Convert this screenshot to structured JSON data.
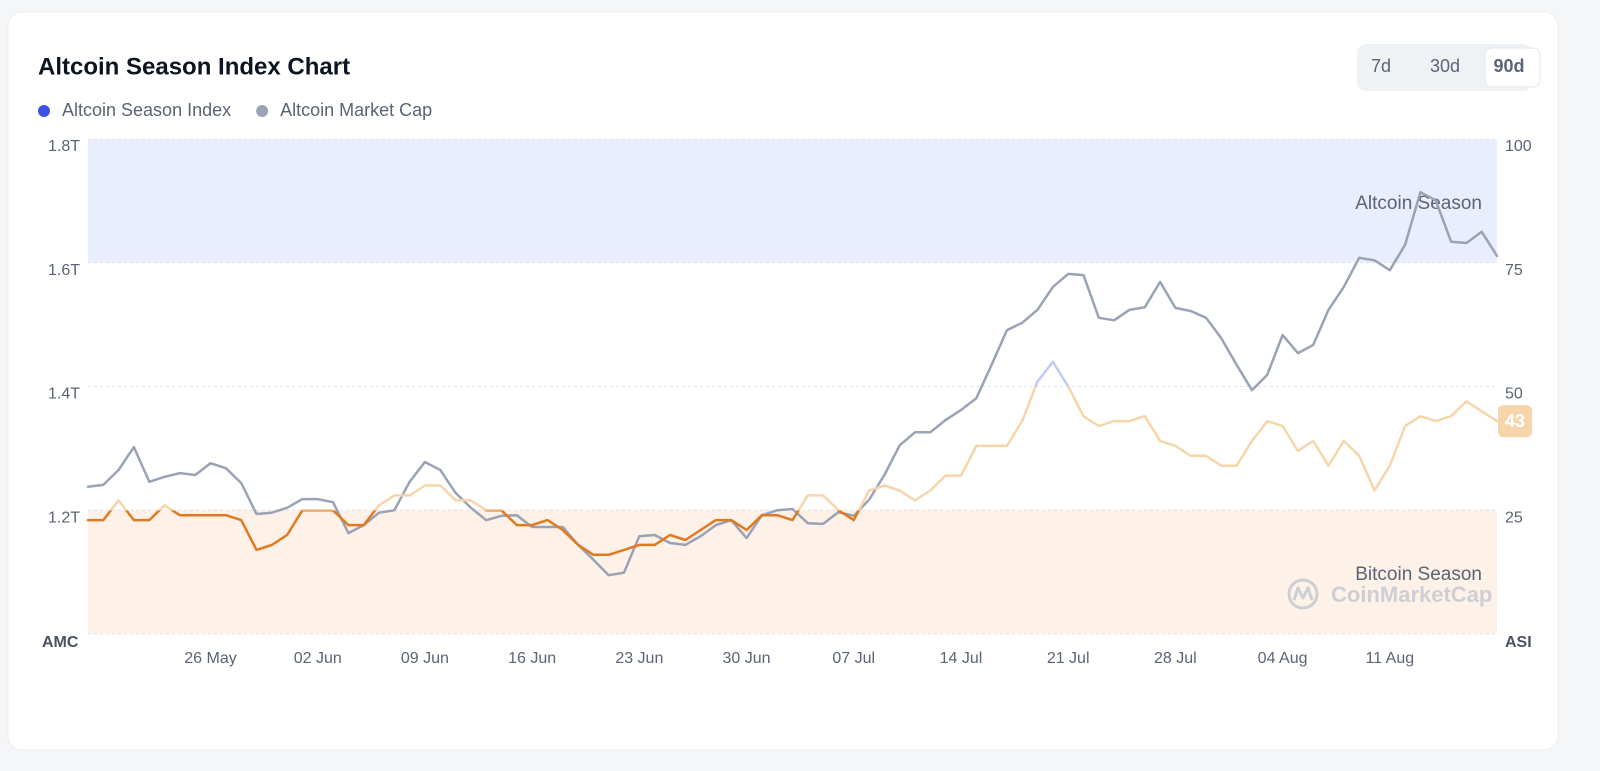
{
  "chart_data": {
    "type": "line",
    "title": "Altcoin Season Index Chart",
    "range_buttons": [
      "7d",
      "30d",
      "90d"
    ],
    "selected_button": 2,
    "watermark": "CoinMarketCap",
    "y_label": "AMC",
    "y2_label": "ASI",
    "ylim": [
      1.0,
      1.8
    ],
    "yticks": [
      {
        "value": 1.2,
        "label": "1.2T"
      },
      {
        "value": 1.4,
        "label": "1.4T"
      },
      {
        "value": 1.6,
        "label": "1.6T"
      },
      {
        "value": 1.8,
        "label": "1.8T"
      }
    ],
    "y2lim": [
      0,
      100
    ],
    "y2ticks": [
      25,
      50,
      75,
      100
    ],
    "grid": true,
    "bands": [
      {
        "label": "Altcoin Season",
        "from": 75,
        "to": 100,
        "color": "#eaedfd",
        "axis": "y2"
      },
      {
        "label": "Bitcoin Season",
        "from": 0,
        "to": 25,
        "color": "#fdf1e8",
        "axis": "y2"
      }
    ],
    "categories": [
      null,
      null,
      null,
      null,
      null,
      null,
      null,
      null,
      "26 May",
      null,
      null,
      null,
      null,
      null,
      null,
      "02 Jun",
      null,
      null,
      null,
      null,
      null,
      null,
      "09 Jun",
      null,
      null,
      null,
      null,
      null,
      null,
      "16 Jun",
      null,
      null,
      null,
      null,
      null,
      null,
      "23 Jun",
      null,
      null,
      null,
      null,
      null,
      null,
      "30 Jun",
      null,
      null,
      null,
      null,
      null,
      null,
      "07 Jul",
      null,
      null,
      null,
      null,
      null,
      null,
      "14 Jul",
      null,
      null,
      null,
      null,
      null,
      null,
      "21 Jul",
      null,
      null,
      null,
      null,
      null,
      null,
      "28 Jul",
      null,
      null,
      null,
      null,
      null,
      null,
      "04 Aug",
      null,
      null,
      null,
      null,
      null,
      null,
      "11 Aug",
      null,
      null,
      null,
      null,
      null,
      null,
      null
    ],
    "series": [
      {
        "name": "Altcoin Season Index",
        "color": "#3b54e8",
        "axis": "y2",
        "zone_colors": [
          "#e07a1f",
          "#f6d5ab",
          "#c3cbf5",
          "#3b54e8"
        ],
        "values": [
          23,
          23,
          27,
          23,
          23,
          26,
          24,
          24,
          24,
          24,
          23,
          17,
          18,
          20,
          25,
          25,
          25,
          22,
          22,
          26,
          28,
          28,
          30,
          30,
          27,
          27,
          25,
          25,
          22,
          22,
          23,
          21,
          18,
          16,
          16,
          17,
          18,
          18,
          20,
          19,
          21,
          23,
          23,
          21,
          24,
          24,
          23,
          28,
          28,
          25,
          23,
          29,
          30,
          29,
          27,
          29,
          32,
          32,
          38,
          38,
          38,
          43,
          51,
          55,
          50,
          44,
          42,
          43,
          43,
          44,
          39,
          38,
          36,
          36,
          34,
          34,
          39,
          43,
          42,
          37,
          39,
          34,
          39,
          36,
          29,
          34,
          42,
          44,
          43,
          44,
          47,
          45,
          43
        ]
      },
      {
        "name": "Altcoin Market Cap",
        "color": "#9aa3b5",
        "axis": "y",
        "values": [
          1.238,
          1.241,
          1.265,
          1.302,
          1.246,
          1.254,
          1.26,
          1.257,
          1.276,
          1.268,
          1.244,
          1.194,
          1.196,
          1.204,
          1.218,
          1.218,
          1.213,
          1.163,
          1.176,
          1.196,
          1.2,
          1.246,
          1.278,
          1.265,
          1.228,
          1.204,
          1.184,
          1.191,
          1.192,
          1.173,
          1.173,
          1.173,
          1.144,
          1.12,
          1.095,
          1.099,
          1.158,
          1.16,
          1.147,
          1.144,
          1.158,
          1.176,
          1.184,
          1.155,
          1.192,
          1.2,
          1.202,
          1.179,
          1.178,
          1.197,
          1.191,
          1.217,
          1.257,
          1.305,
          1.326,
          1.326,
          1.346,
          1.362,
          1.381,
          1.435,
          1.491,
          1.503,
          1.524,
          1.561,
          1.582,
          1.58,
          1.511,
          1.507,
          1.524,
          1.528,
          1.569,
          1.527,
          1.522,
          1.511,
          1.478,
          1.435,
          1.394,
          1.419,
          1.483,
          1.454,
          1.467,
          1.524,
          1.561,
          1.608,
          1.604,
          1.588,
          1.629,
          1.714,
          1.701,
          1.634,
          1.632,
          1.65,
          1.611
        ]
      }
    ]
  }
}
